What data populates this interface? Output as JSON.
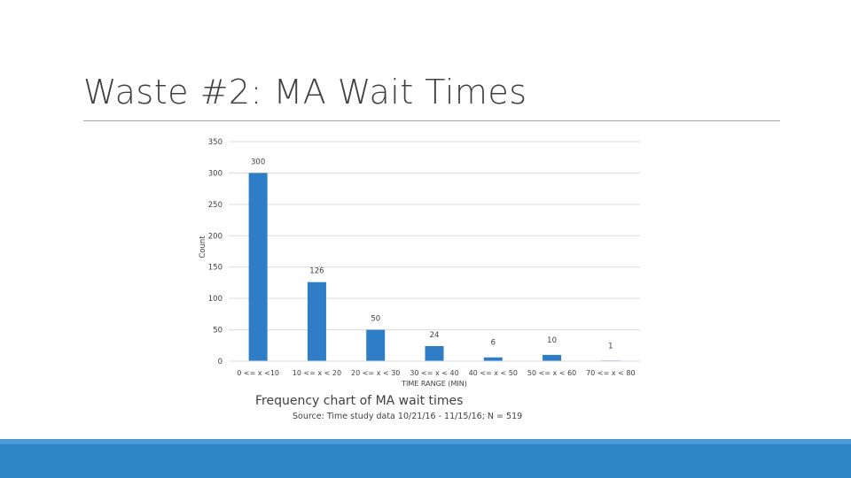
{
  "slide": {
    "title": "Waste #2: MA Wait Times",
    "caption": "Frequency chart of MA wait times",
    "source": "Source: Time study data 10/21/16 - 11/15/16; N = 519"
  },
  "colors": {
    "bar": "#2e7dc6",
    "gridline": "#d9d9d9",
    "title_text": "#404040",
    "rule": "#a6a6a6",
    "footer": "#2e86c8"
  },
  "chart_data": {
    "type": "bar",
    "title": "",
    "xlabel": "TIME RANGE (MIN)",
    "ylabel": "Count",
    "ylim": [
      0,
      350
    ],
    "yticks": [
      0,
      50,
      100,
      150,
      200,
      250,
      300,
      350
    ],
    "grid": true,
    "legend": "none",
    "categories": [
      "0 <= x <10",
      "10 <= x < 20",
      "20 <= x < 30",
      "30 <= x < 40",
      "40 <= x < 50",
      "50 <= x < 60",
      "70 <= x < 80"
    ],
    "values": [
      300,
      126,
      50,
      24,
      6,
      10,
      1
    ],
    "data_labels": [
      "300",
      "126",
      "50",
      "24",
      "6",
      "10",
      "1"
    ]
  }
}
